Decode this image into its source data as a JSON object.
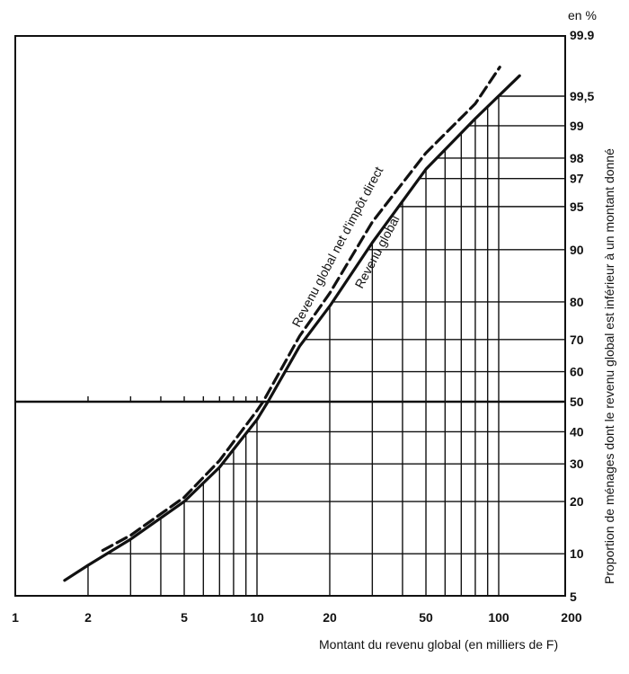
{
  "chart_data": {
    "type": "line",
    "x_scale": "log",
    "y_scale": "normal-probability",
    "xlim": [
      1,
      200
    ],
    "ylim": [
      5,
      99.9
    ],
    "xlabel": "Montant du revenu global  (en milliers de F)",
    "ylabel": "Proportion de  ménages dont le revenu global est inférieur à un montant donné",
    "y_unit": "en %",
    "x_ticks": [
      1,
      2,
      5,
      10,
      20,
      50,
      100,
      200
    ],
    "y_ticks": [
      "99.9",
      "99,5",
      "99",
      "98",
      "97",
      "95",
      "90",
      "80",
      "70",
      "60",
      "50",
      "40",
      "30",
      "20",
      "10",
      "5"
    ],
    "y_tick_values": [
      99.9,
      99.5,
      99,
      98,
      97,
      95,
      90,
      80,
      70,
      60,
      50,
      40,
      30,
      20,
      10,
      5
    ],
    "x_grid": [
      2,
      3,
      4,
      5,
      6,
      7,
      8,
      9,
      10,
      20,
      30,
      40,
      50,
      60,
      70,
      80,
      90,
      100
    ],
    "baseline_ticks": [
      2,
      3,
      4,
      5,
      6,
      7,
      8,
      9,
      10
    ],
    "grid": true,
    "series": [
      {
        "name": "Revenu global",
        "style": "solid",
        "x": [
          1.6,
          2,
          3,
          5,
          7,
          10,
          11.1,
          15,
          20,
          30,
          50,
          80,
          122
        ],
        "y": [
          6.6,
          8.4,
          12.3,
          20,
          29,
          44,
          50,
          68,
          79,
          91,
          97.5,
          99.15,
          99.7
        ]
      },
      {
        "name": "Revenu global net d'impôt direct",
        "style": "dashed",
        "x": [
          2.3,
          3,
          5,
          7,
          10,
          10.6,
          15,
          20,
          30,
          50,
          80,
          101
        ],
        "y": [
          10.5,
          13,
          21,
          31,
          47,
          50,
          71,
          82,
          93.5,
          98.2,
          99.4,
          99.76
        ]
      }
    ],
    "colors": {
      "ink": "#111111",
      "background": "#ffffff"
    }
  }
}
